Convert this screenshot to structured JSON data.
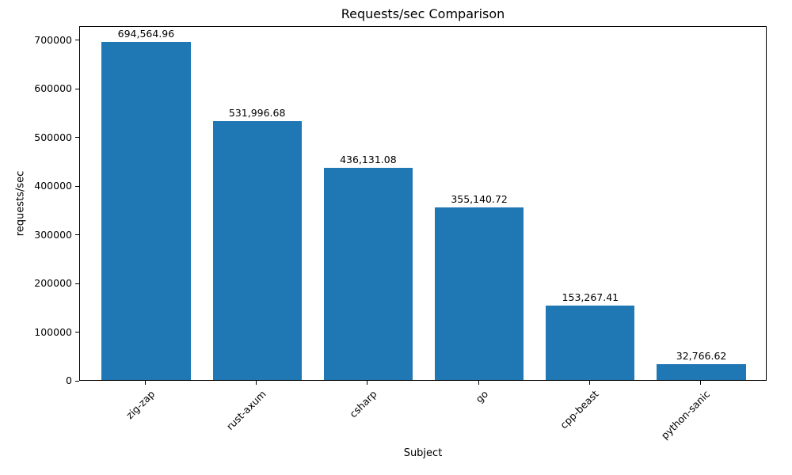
{
  "chart_data": {
    "type": "bar",
    "title": "Requests/sec Comparison",
    "xlabel": "Subject",
    "ylabel": "requests/sec",
    "categories": [
      "zig-zap",
      "rust-axum",
      "csharp",
      "go",
      "cpp-beast",
      "python-sanic"
    ],
    "values": [
      694564.96,
      531996.68,
      436131.08,
      355140.72,
      153267.41,
      32766.62
    ],
    "value_labels": [
      "694,564.96",
      "531,996.68",
      "436,131.08",
      "355,140.72",
      "153,267.41",
      "32,766.62"
    ],
    "ylim": [
      0,
      729293
    ],
    "yticks": [
      0,
      100000,
      200000,
      300000,
      400000,
      500000,
      600000,
      700000
    ],
    "bar_color": "#1f77b4",
    "background_color": "#ffffff",
    "grid": false,
    "legend": "none"
  }
}
